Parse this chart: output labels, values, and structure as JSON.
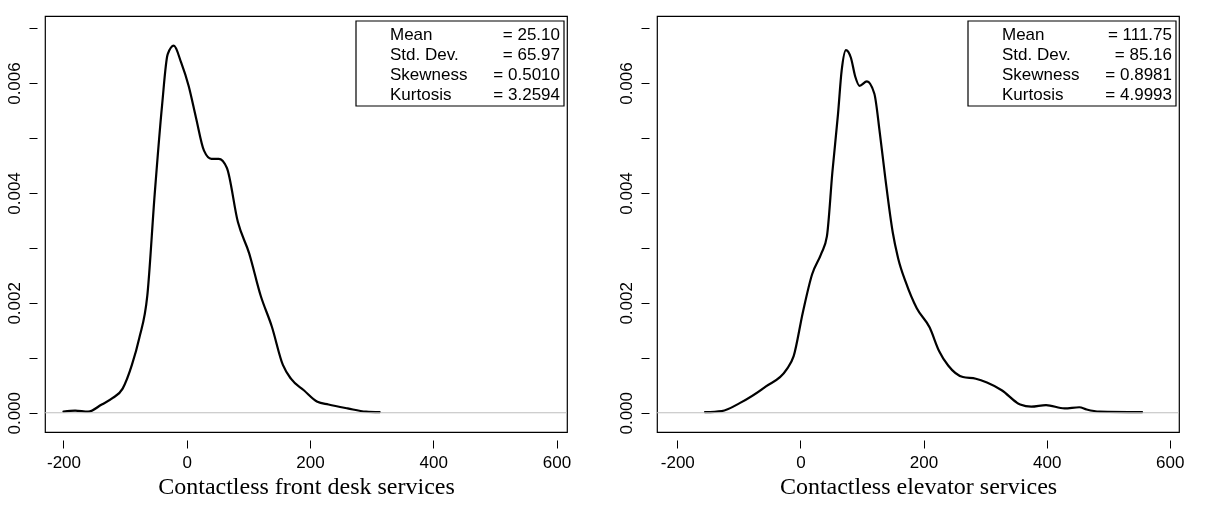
{
  "chart_data": [
    {
      "type": "line",
      "xlabel": "Contactless front desk services",
      "xlim": [
        -230,
        617
      ],
      "ylim": [
        -0.00035,
        0.00722
      ],
      "xticks": [
        -200,
        0,
        200,
        400,
        600
      ],
      "yticks": [
        {
          "value": 0,
          "label": "0.000"
        },
        {
          "value": 0.001,
          "label": null
        },
        0.002,
        {
          "value": 0.003,
          "label": null
        },
        0.004,
        {
          "value": 0.005,
          "label": null
        },
        0.006,
        {
          "value": 0.007,
          "label": null
        }
      ],
      "grid": false,
      "line_style": "solid",
      "marker": "none",
      "ref_lines": [
        {
          "axis": "y",
          "value": 0,
          "color": "#bebebe"
        }
      ],
      "annotations": [
        "Mean = 25.10",
        "Std. Dev. = 65.97",
        "Skewness = 0.5010",
        "Kurtosis = 3.2594"
      ],
      "series": [
        {
          "color": "#000000",
          "x": [
            -200,
            -181,
            -160,
            -138,
            -120,
            -104,
            -89,
            -77,
            -64,
            -52,
            -40,
            -31,
            -21,
            -9,
            3,
            15,
            28,
            40,
            52,
            65,
            83,
            101,
            120,
            138,
            156,
            169,
            190,
            212,
            230,
            261,
            291,
            313
          ],
          "values": [
            2e-05,
            4e-05,
            2e-05,
            0.00015,
            0.00027,
            0.00044,
            0.00087,
            0.00136,
            0.00213,
            0.00398,
            0.0056,
            0.00652,
            0.00668,
            0.00637,
            0.00595,
            0.00537,
            0.00477,
            0.00462,
            0.00462,
            0.00446,
            0.00347,
            0.00291,
            0.00213,
            0.00157,
            0.00087,
            0.00062,
            0.00041,
            0.0002,
            0.00015,
            8e-05,
            2e-05,
            1e-05
          ]
        }
      ]
    },
    {
      "type": "line",
      "xlabel": "Contactless elevator services",
      "xlim": [
        -233,
        615
      ],
      "ylim": [
        -0.00035,
        0.00722
      ],
      "xticks": [
        -200,
        0,
        200,
        400,
        600
      ],
      "yticks": [
        {
          "value": 0,
          "label": "0.000"
        },
        {
          "value": 0.001,
          "label": null
        },
        0.002,
        {
          "value": 0.003,
          "label": null
        },
        0.004,
        {
          "value": 0.005,
          "label": null
        },
        0.006,
        {
          "value": 0.007,
          "label": null
        }
      ],
      "grid": false,
      "line_style": "solid",
      "marker": "none",
      "ref_lines": [
        {
          "axis": "y",
          "value": 0,
          "color": "#bebebe"
        }
      ],
      "annotations": [
        "Mean = 111.75",
        "Std. Dev. = 85.16",
        "Skewness = 0.8981",
        "Kurtosis = 4.9993"
      ],
      "series": [
        {
          "color": "#000000",
          "x": [
            -155,
            -128,
            -98,
            -56,
            -23,
            -11,
            4,
            19,
            34,
            43,
            52,
            61,
            67,
            74,
            82,
            89,
            96,
            108,
            120,
            129,
            138,
            150,
            159,
            171,
            189,
            210,
            225,
            240,
            264,
            285,
            303,
            327,
            357,
            375,
            399,
            429,
            453,
            465,
            486,
            555
          ],
          "values": [
            1e-05,
            3e-05,
            0.00018,
            0.00048,
            0.00078,
            0.00103,
            0.00183,
            0.00252,
            0.0029,
            0.00321,
            0.00439,
            0.00543,
            0.00623,
            0.0066,
            0.00646,
            0.00612,
            0.00595,
            0.00603,
            0.00581,
            0.00509,
            0.00426,
            0.00328,
            0.0028,
            0.00238,
            0.0019,
            0.00155,
            0.00113,
            0.00086,
            0.00065,
            0.00062,
            0.00055,
            0.00041,
            0.00015,
            0.00011,
            0.00014,
            8e-05,
            0.0001,
            6e-05,
            2e-05,
            1e-05
          ]
        }
      ]
    }
  ]
}
